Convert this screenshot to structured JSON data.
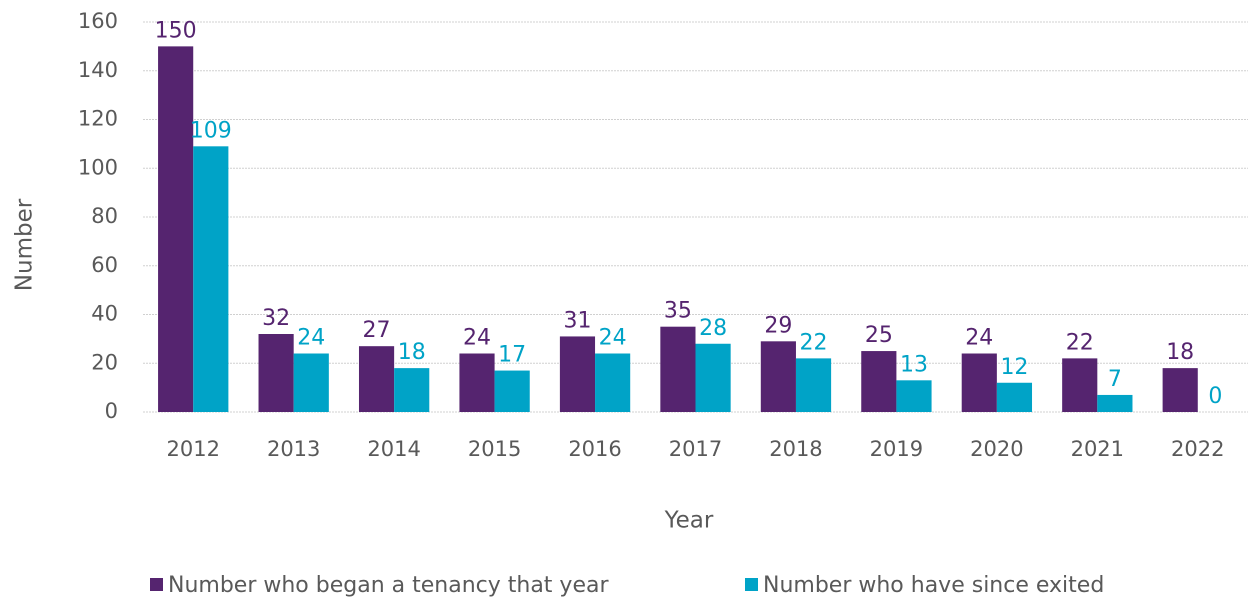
{
  "chart_data": {
    "type": "bar",
    "x_label": "Year",
    "y_label": "Number",
    "categories": [
      "2012",
      "2013",
      "2014",
      "2015",
      "2016",
      "2017",
      "2018",
      "2019",
      "2020",
      "2021",
      "2022"
    ],
    "series": [
      {
        "name": "Number who began a tenancy that year",
        "color": "#55246f",
        "values": [
          150,
          32,
          27,
          24,
          31,
          35,
          29,
          25,
          24,
          22,
          18
        ]
      },
      {
        "name": "Number who have since exited",
        "color": "#00a3c7",
        "values": [
          109,
          24,
          18,
          17,
          24,
          28,
          22,
          13,
          12,
          7,
          0
        ]
      }
    ],
    "ylim": [
      0,
      160
    ],
    "yticks": [
      0,
      20,
      40,
      60,
      80,
      100,
      120,
      140,
      160
    ],
    "grid": true,
    "legend": "bottom"
  }
}
